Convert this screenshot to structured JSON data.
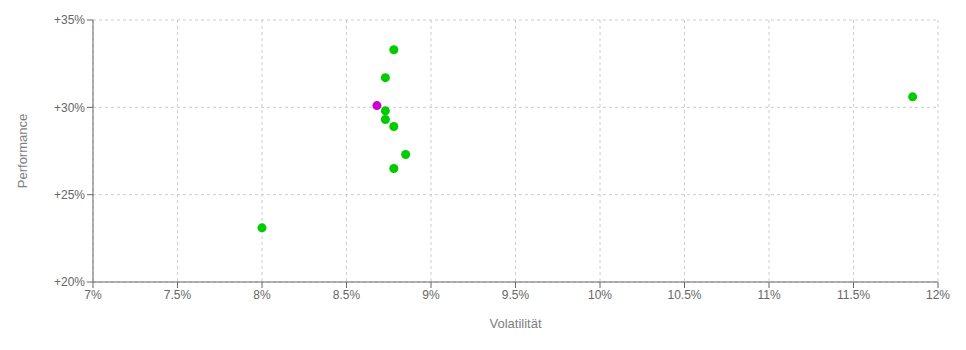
{
  "chart_data": {
    "type": "scatter",
    "xlabel": "Volatilität",
    "ylabel": "Performance",
    "series": [
      {
        "color": "#00cc00",
        "x": [
          0.0878,
          0.0873,
          0.0873,
          0.0873,
          0.0878,
          0.0885,
          0.0878,
          0.08,
          0.1185
        ],
        "values": [
          0.333,
          0.317,
          0.298,
          0.293,
          0.289,
          0.273,
          0.265,
          0.231,
          0.306
        ]
      },
      {
        "color": "#cc00cc",
        "x": [
          0.0868
        ],
        "values": [
          0.301
        ]
      }
    ],
    "xlim": [
      0.07,
      0.12
    ],
    "ylim": [
      0.2,
      0.35
    ],
    "xticks": [
      {
        "value": 0.07,
        "label": "7%"
      },
      {
        "value": 0.075,
        "label": "7.5%"
      },
      {
        "value": 0.08,
        "label": "8%"
      },
      {
        "value": 0.085,
        "label": "8.5%"
      },
      {
        "value": 0.09,
        "label": "9%"
      },
      {
        "value": 0.095,
        "label": "9.5%"
      },
      {
        "value": 0.1,
        "label": "10%"
      },
      {
        "value": 0.105,
        "label": "10.5%"
      },
      {
        "value": 0.11,
        "label": "11%"
      },
      {
        "value": 0.115,
        "label": "11.5%"
      },
      {
        "value": 0.12,
        "label": "12%"
      }
    ],
    "yticks": [
      {
        "value": 0.2,
        "label": "+20%"
      },
      {
        "value": 0.25,
        "label": "+25%"
      },
      {
        "value": 0.3,
        "label": "+30%"
      },
      {
        "value": 0.35,
        "label": "+35%"
      }
    ],
    "grid": true
  }
}
